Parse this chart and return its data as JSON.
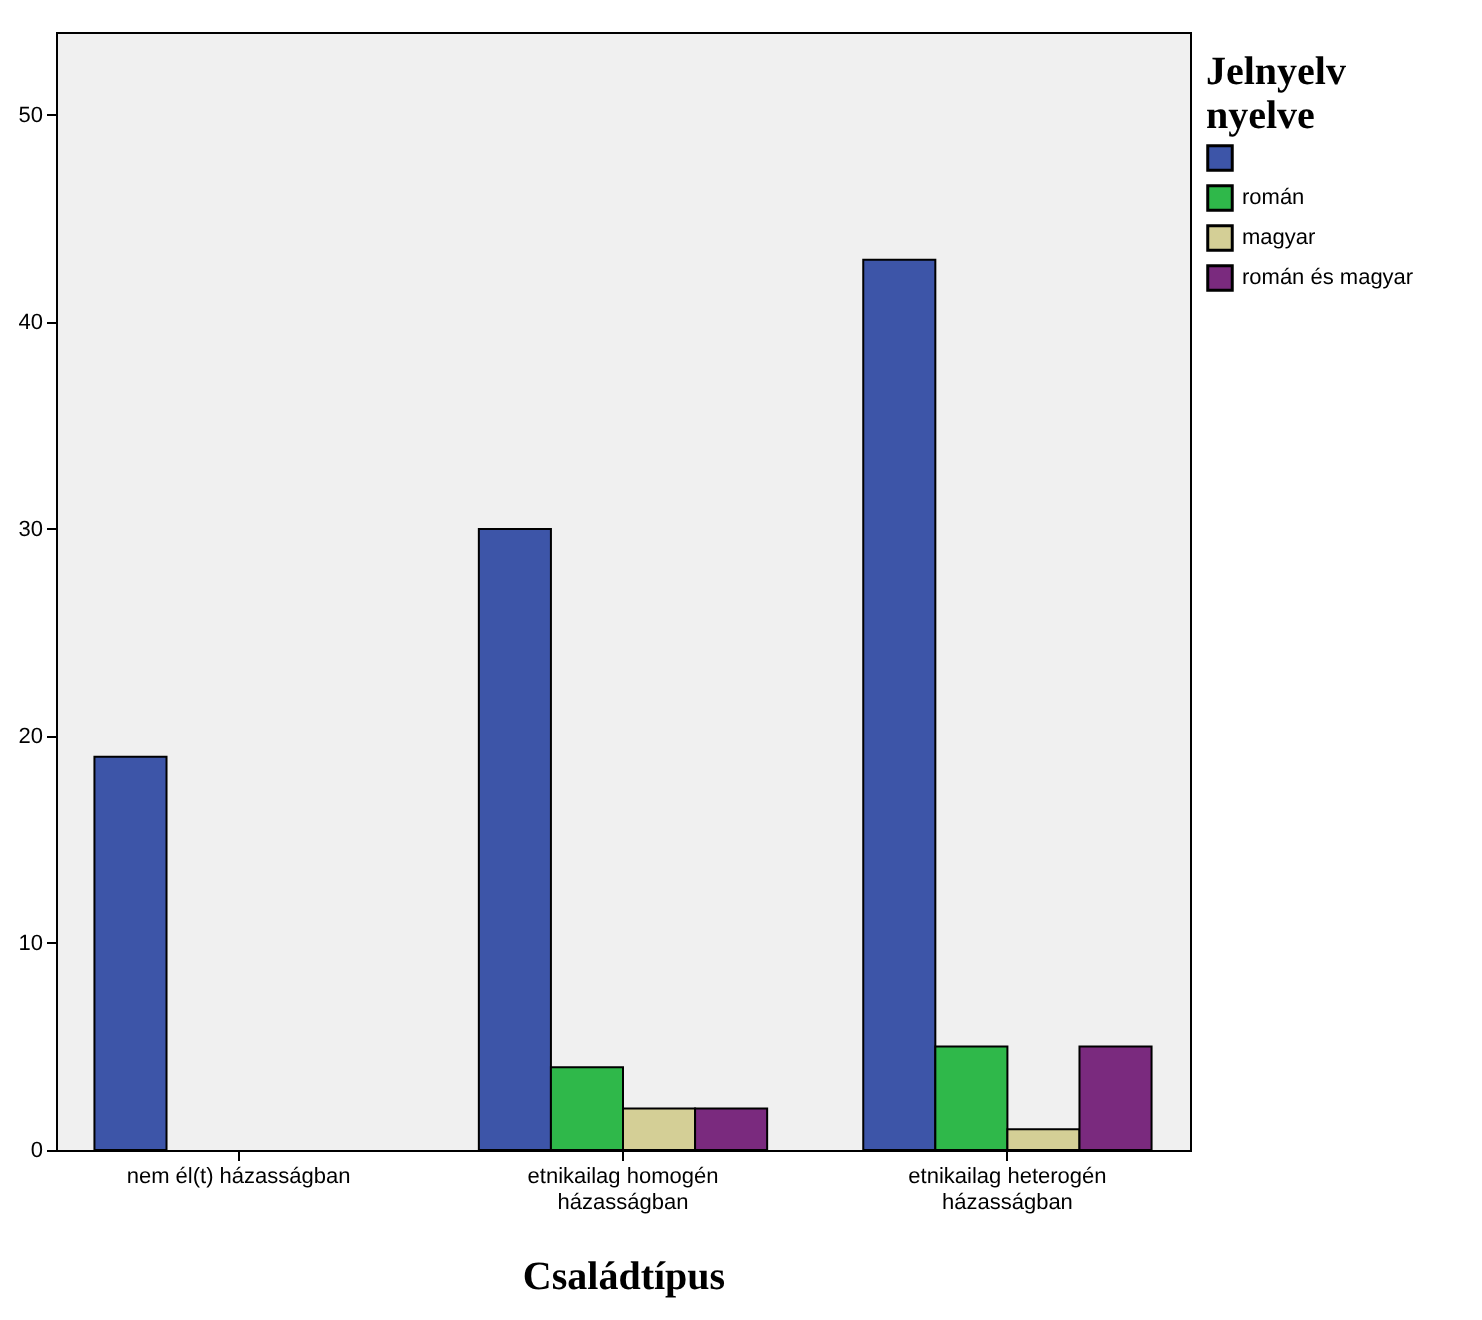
{
  "chart_data": {
    "type": "bar",
    "xlabel": "Családtípus",
    "legend_title": "Jelnyelv nyelve",
    "categories": [
      "nem él(t) házasságban",
      "etnikailag homogén házasságban",
      "etnikailag heterogén házasságban"
    ],
    "series": [
      {
        "color": "#3d55a8",
        "values": [
          19,
          30,
          43
        ]
      },
      {
        "name": "román",
        "color": "#2fb84a",
        "values": [
          null,
          4,
          5
        ]
      },
      {
        "name": "magyar",
        "color": "#d4cf96",
        "values": [
          null,
          2,
          1
        ]
      },
      {
        "name": "román és magyar",
        "color": "#7a2a7e",
        "values": [
          null,
          2,
          5
        ]
      }
    ],
    "ylim": [
      0,
      54
    ],
    "yticks": [
      0,
      10,
      20,
      30,
      40,
      50
    ],
    "grid": false,
    "legend": "top right"
  }
}
